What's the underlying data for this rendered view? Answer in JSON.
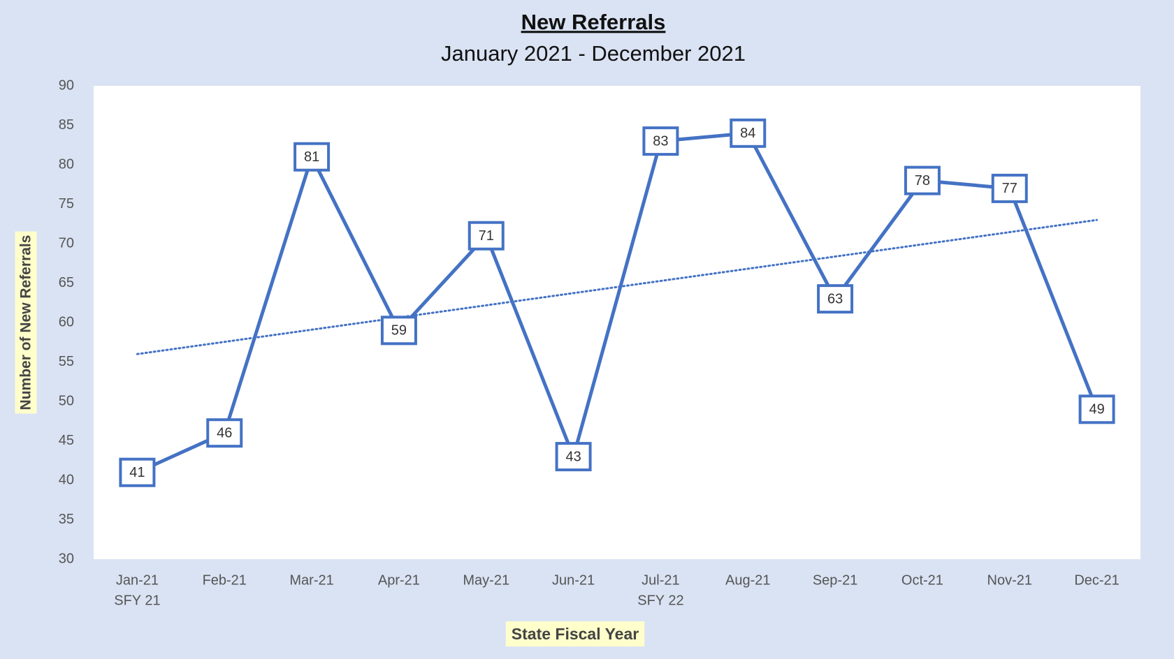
{
  "chart_data": {
    "type": "line",
    "title": "New Referrals",
    "subtitle": "January 2021 - December 2021",
    "x_label": "State Fiscal Year",
    "y_label": "Number of New Referrals",
    "categories": [
      "Jan-21",
      "Feb-21",
      "Mar-21",
      "Apr-21",
      "May-21",
      "Jun-21",
      "Jul-21",
      "Aug-21",
      "Sep-21",
      "Oct-21",
      "Nov-21",
      "Dec-21"
    ],
    "category_sublabels": [
      "SFY 21",
      null,
      null,
      null,
      null,
      null,
      "SFY 22",
      null,
      null,
      null,
      null,
      null
    ],
    "values": [
      41,
      46,
      81,
      59,
      71,
      43,
      83,
      84,
      63,
      78,
      77,
      49
    ],
    "color": "#4472c4",
    "trendline": {
      "start": 56,
      "end": 73,
      "color": "#4472c4",
      "style": "dotted"
    },
    "ylim": [
      30,
      90
    ],
    "yticks": [
      30,
      35,
      40,
      45,
      50,
      55,
      60,
      65,
      70,
      75,
      80,
      85,
      90
    ],
    "grid": false
  }
}
